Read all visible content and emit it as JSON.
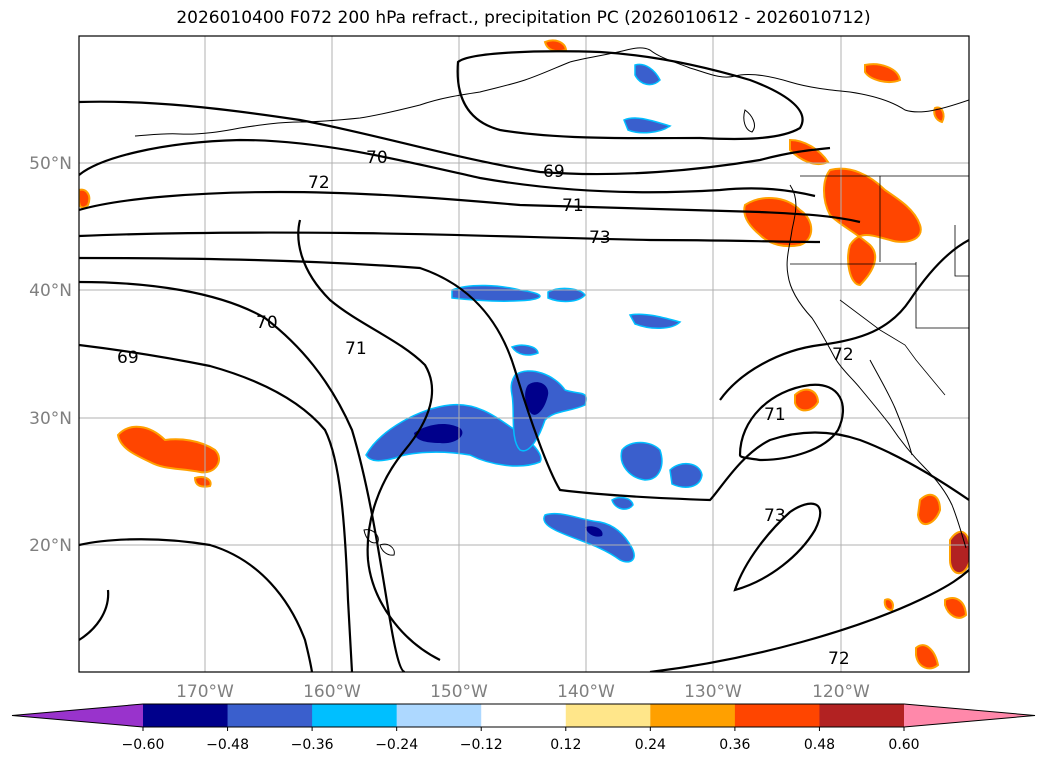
{
  "title": "2026010400 F072 200 hPa refract., precipitation PC (2026010612 - 2026010712)",
  "latitude_labels": [
    "50°N",
    "40°N",
    "30°N",
    "20°N"
  ],
  "longitude_labels": [
    "170°W",
    "160°W",
    "150°W",
    "140°W",
    "130°W",
    "120°W"
  ],
  "contour_labels": [
    "70",
    "69",
    "72",
    "71",
    "73",
    "70",
    "71",
    "69",
    "72",
    "71",
    "73",
    "72"
  ],
  "colorbar": {
    "ticks": [
      "−0.60",
      "−0.48",
      "−0.36",
      "−0.24",
      "−0.12",
      "0.12",
      "0.24",
      "0.36",
      "0.48",
      "0.60"
    ],
    "colors": [
      "#9933cc",
      "#00008b",
      "#3a5fcd",
      "#00bfff",
      "#add8ff",
      "#ffffff",
      "#ffe68a",
      "#ffa000",
      "#ff4500",
      "#b22222",
      "#ff88aa"
    ]
  }
}
